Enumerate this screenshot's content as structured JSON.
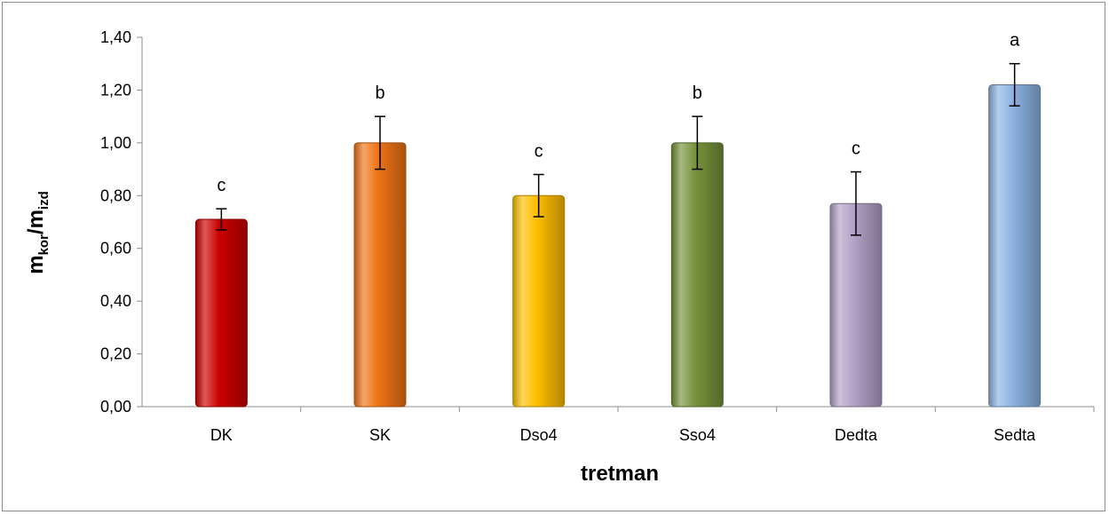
{
  "chart_data": {
    "type": "bar",
    "categories": [
      "DK",
      "SK",
      "Dso4",
      "Sso4",
      "Dedta",
      "Sedta"
    ],
    "values": [
      0.71,
      1.0,
      0.8,
      1.0,
      0.77,
      1.22
    ],
    "error": [
      0.04,
      0.1,
      0.08,
      0.1,
      0.12,
      0.08
    ],
    "significance": [
      "c",
      "b",
      "c",
      "b",
      "c",
      "a"
    ],
    "colors": [
      "#cc0000",
      "#f07516",
      "#ffc000",
      "#77933c",
      "#b3a2c7",
      "#8db4e3"
    ],
    "xlabel": "tretman",
    "ylabel": {
      "main1": "m",
      "sub1": "kor",
      "slash": "/",
      "main2": "m",
      "sub2": "izd"
    },
    "ylim": [
      0,
      1.4
    ],
    "yticks": [
      "0,00",
      "0,20",
      "0,40",
      "0,60",
      "0,80",
      "1,00",
      "1,20",
      "1,40"
    ],
    "grid": false,
    "legend": "none"
  }
}
